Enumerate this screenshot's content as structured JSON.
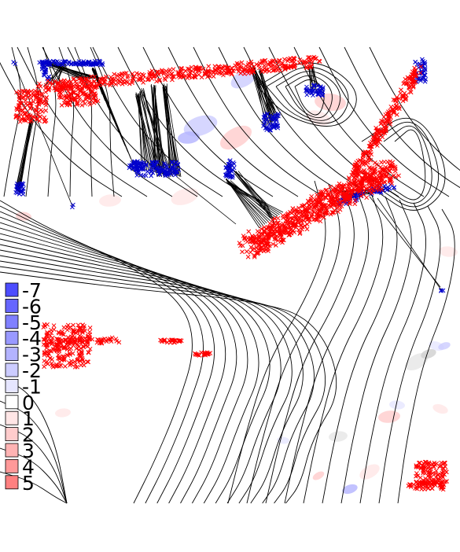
{
  "chart_data": {
    "type": "scatter",
    "title": "",
    "xlabel": "",
    "ylabel": "",
    "grid": false,
    "legend": {
      "placement": "left",
      "entries": [
        {
          "label": "-7",
          "color": "#4d4dff"
        },
        {
          "label": "-6",
          "color": "#6666ff"
        },
        {
          "label": "-5",
          "color": "#8080ff"
        },
        {
          "label": "-4",
          "color": "#9999ff"
        },
        {
          "label": "-3",
          "color": "#b3b3ff"
        },
        {
          "label": "-2",
          "color": "#ccccff"
        },
        {
          "label": "-1",
          "color": "#e6e6ff"
        },
        {
          "label": "0",
          "color": "#ffffff"
        },
        {
          "label": "1",
          "color": "#ffe6e6"
        },
        {
          "label": "2",
          "color": "#ffcccc"
        },
        {
          "label": "3",
          "color": "#ffb3b3"
        },
        {
          "label": "4",
          "color": "#ff9999"
        },
        {
          "label": "5",
          "color": "#ff8080"
        }
      ]
    },
    "series": [
      {
        "marker": "x",
        "color": "#0000cc"
      },
      {
        "marker": "x",
        "color": "#ff0000"
      }
    ],
    "connector_color": "#000000",
    "contour_color": "#000000"
  }
}
